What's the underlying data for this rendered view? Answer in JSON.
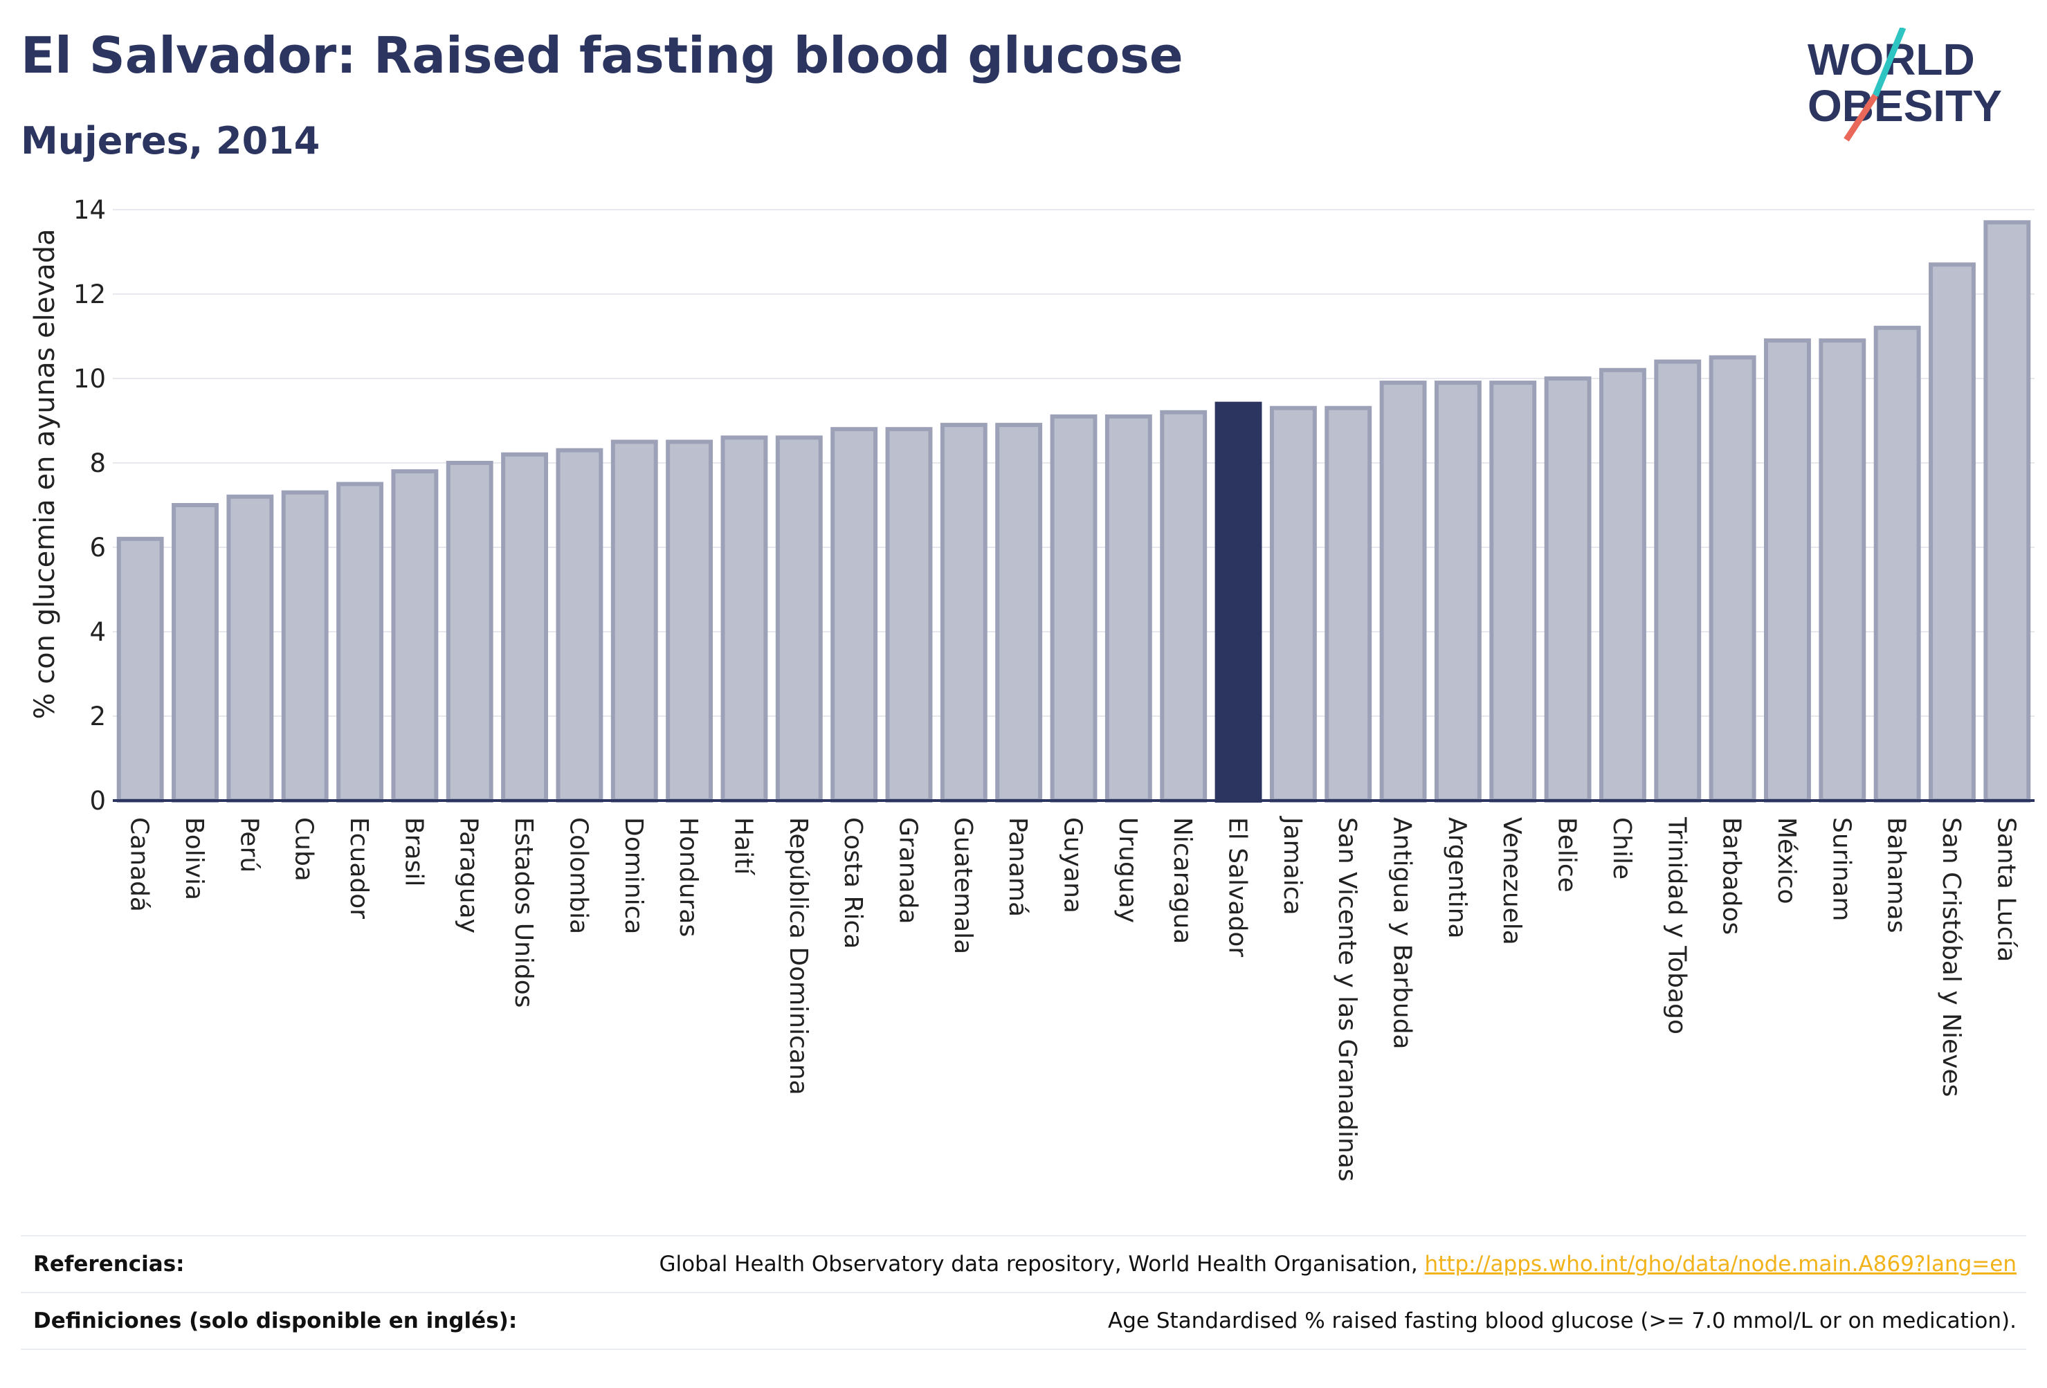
{
  "header": {
    "title": "El Salvador: Raised fasting blood glucose",
    "subtitle": "Mujeres, 2014"
  },
  "logo": {
    "line1": "WORLD",
    "line2": "OBESITY",
    "colors": {
      "text": "#2b3560",
      "slash_top": "#2ec4c2",
      "slash_bottom": "#e9685a"
    }
  },
  "colors": {
    "bar": "#bcc0ce",
    "bar_border": "#9ca1b8",
    "highlight": "#2b3560",
    "axis": "#2b3560",
    "grid": "#e6e8ee",
    "tick_text": "#222222"
  },
  "chart_data": {
    "type": "bar",
    "title": "El Salvador: Raised fasting blood glucose",
    "subtitle": "Mujeres, 2014",
    "xlabel": "",
    "ylabel": "% con glucemia en ayunas elevada",
    "ylim": [
      0,
      14
    ],
    "yticks": [
      0,
      2,
      4,
      6,
      8,
      10,
      12,
      14
    ],
    "grid": true,
    "highlight": "El Salvador",
    "categories": [
      "Canadá",
      "Bolivia",
      "Perú",
      "Cuba",
      "Ecuador",
      "Brasil",
      "Paraguay",
      "Estados Unidos",
      "Colombia",
      "Dominica",
      "Honduras",
      "Haití",
      "República Dominicana",
      "Costa Rica",
      "Granada",
      "Guatemala",
      "Panamá",
      "Guyana",
      "Uruguay",
      "Nicaragua",
      "El Salvador",
      "Jamaica",
      "San Vicente y las Granadinas",
      "Antigua y Barbuda",
      "Argentina",
      "Venezuela",
      "Belice",
      "Chile",
      "Trinidad y Tobago",
      "Barbados",
      "México",
      "Surinam",
      "Bahamas",
      "San Cristóbal y Nieves",
      "Santa Lucía"
    ],
    "values": [
      6.2,
      7.0,
      7.2,
      7.3,
      7.5,
      7.8,
      8.0,
      8.2,
      8.3,
      8.5,
      8.5,
      8.6,
      8.6,
      8.8,
      8.8,
      8.9,
      8.9,
      9.1,
      9.1,
      9.2,
      9.4,
      9.3,
      9.3,
      9.9,
      9.9,
      9.9,
      10.0,
      10.2,
      10.4,
      10.5,
      10.9,
      10.9,
      11.2,
      12.7,
      13.7
    ]
  },
  "footer": {
    "references_label": "Referencias:",
    "references_text": "Global Health Observatory data repository, World Health Organisation, ",
    "references_link": "http://apps.who.int/gho/data/node.main.A869?lang=en",
    "definitions_label": "Definiciones (solo disponible en inglés):",
    "definitions_text": "Age Standardised % raised fasting blood glucose (>= 7.0 mmol/L or on medication)."
  }
}
